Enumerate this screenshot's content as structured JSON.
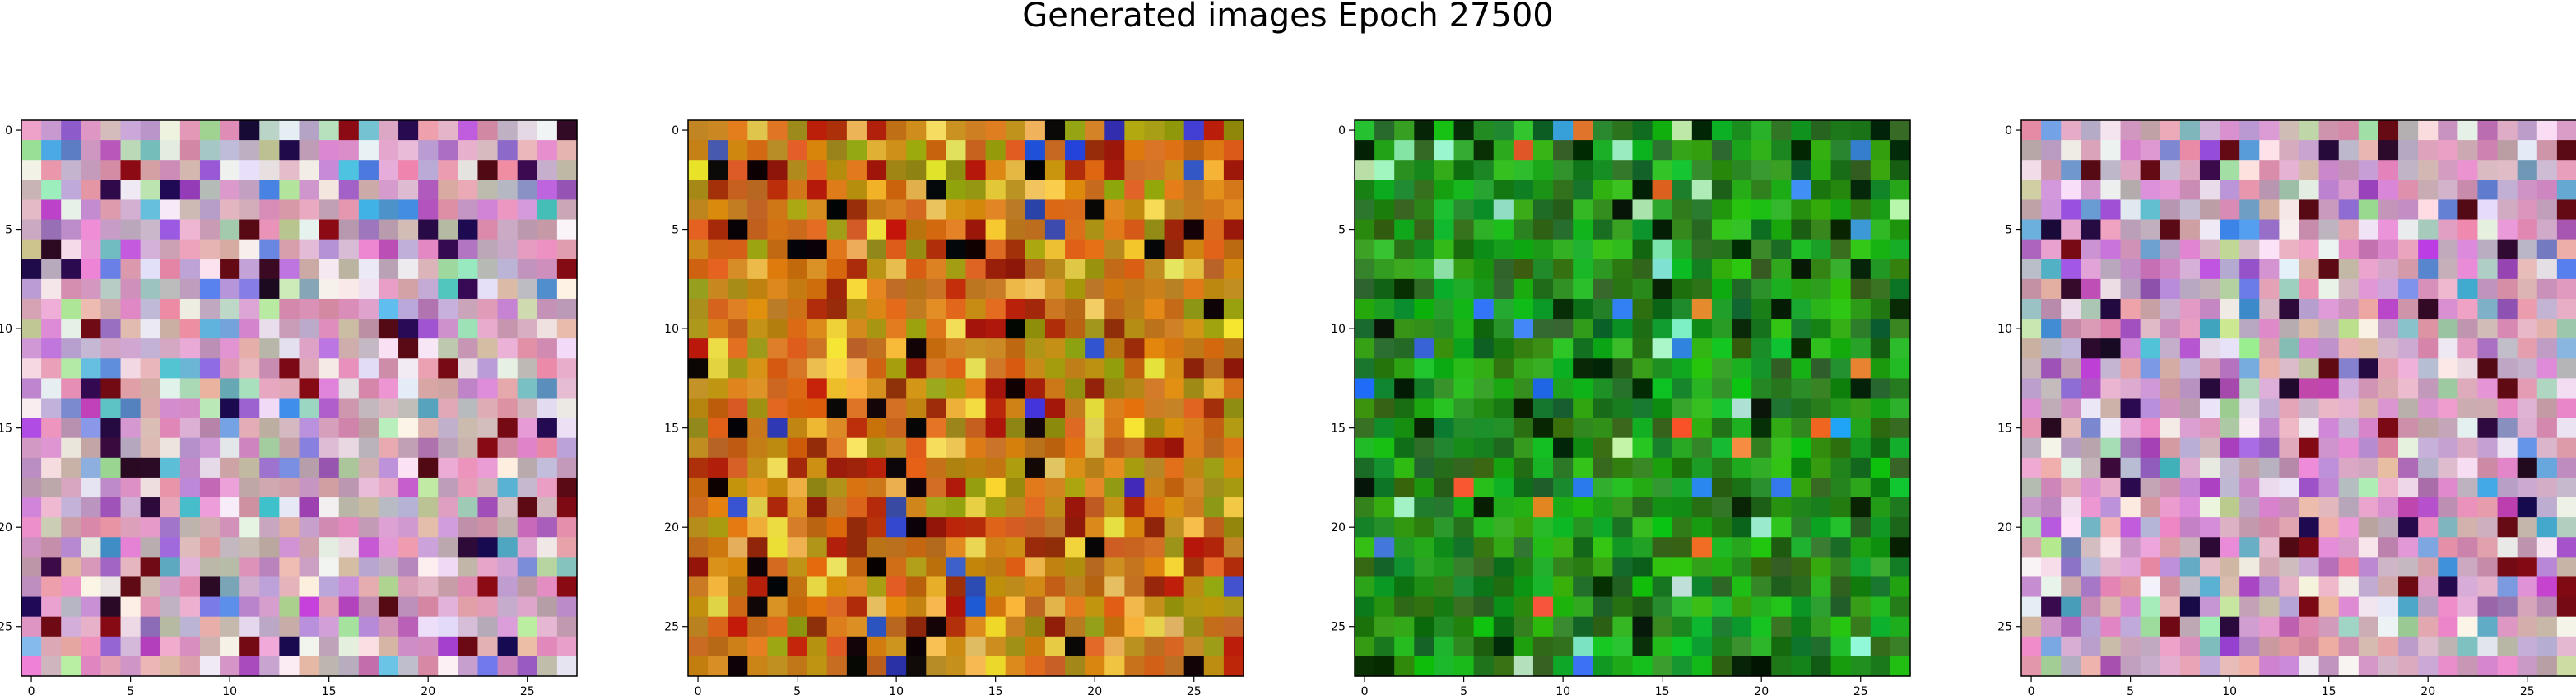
{
  "title": "Generated images Epoch 27500",
  "chart_data": {
    "type": "heatmap",
    "title": "Generated images Epoch 27500",
    "grid": false,
    "panels": [
      {
        "name": "",
        "palette": "pink-mix",
        "grid_size": 28,
        "xticks": [
          "0",
          "5",
          "10",
          "15",
          "20",
          "25"
        ],
        "yticks": [
          "0",
          "5",
          "10",
          "15",
          "20",
          "25"
        ]
      },
      {
        "name": "",
        "palette": "orange-mix",
        "grid_size": 28,
        "xticks": [
          "0",
          "5",
          "10",
          "15",
          "20",
          "25"
        ],
        "yticks": [
          "0",
          "5",
          "10",
          "15",
          "20",
          "25"
        ]
      },
      {
        "name": "",
        "palette": "green-mix",
        "grid_size": 28,
        "xticks": [
          "0",
          "5",
          "10",
          "15",
          "20",
          "25"
        ],
        "yticks": [
          "0",
          "5",
          "10",
          "15",
          "20",
          "25"
        ]
      },
      {
        "name": "",
        "palette": "pink-mix",
        "grid_size": 28,
        "xticks": [
          "0",
          "5",
          "10",
          "15",
          "20",
          "25"
        ],
        "yticks": [
          "0",
          "5",
          "10",
          "15",
          "20",
          "25"
        ]
      }
    ],
    "xlim": [
      -0.5,
      27.5
    ],
    "ylim": [
      27.5,
      -0.5
    ]
  }
}
